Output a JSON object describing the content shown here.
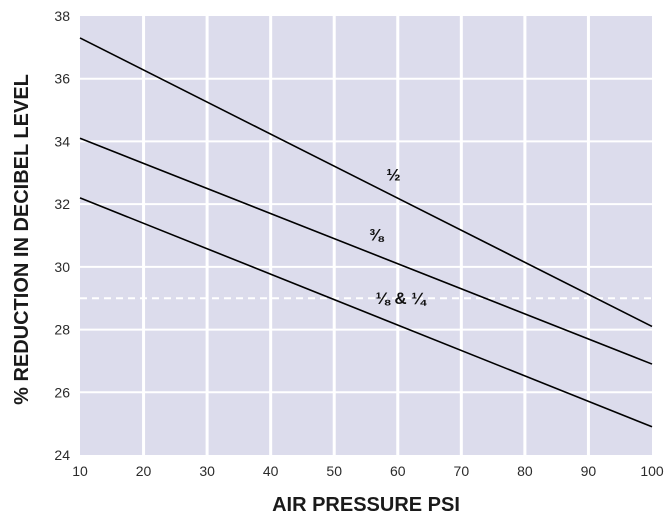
{
  "chart_data": {
    "type": "line",
    "title": "",
    "xlabel": "AIR PRESSURE PSI",
    "ylabel": "% REDUCTION IN DECIBEL LEVEL",
    "xlim": [
      10,
      100
    ],
    "ylim": [
      24,
      38
    ],
    "x_ticks": [
      10,
      20,
      30,
      40,
      50,
      60,
      70,
      80,
      90,
      100
    ],
    "y_ticks": [
      24,
      26,
      28,
      30,
      32,
      34,
      36,
      38
    ],
    "grid": true,
    "colors": {
      "plot_background": "#dcdcec",
      "grid": "#ffffff",
      "lines": "#000000",
      "reference_line": "#ffffff"
    },
    "reference_line": {
      "y": 29,
      "style": "dashed"
    },
    "series": [
      {
        "name": "½",
        "x": [
          10,
          100
        ],
        "y": [
          37.3,
          28.1
        ]
      },
      {
        "name": "⅜",
        "x": [
          10,
          100
        ],
        "y": [
          34.1,
          26.9
        ]
      },
      {
        "name": "⅛ & ¼",
        "x": [
          10,
          100
        ],
        "y": [
          32.2,
          24.9
        ]
      }
    ]
  }
}
